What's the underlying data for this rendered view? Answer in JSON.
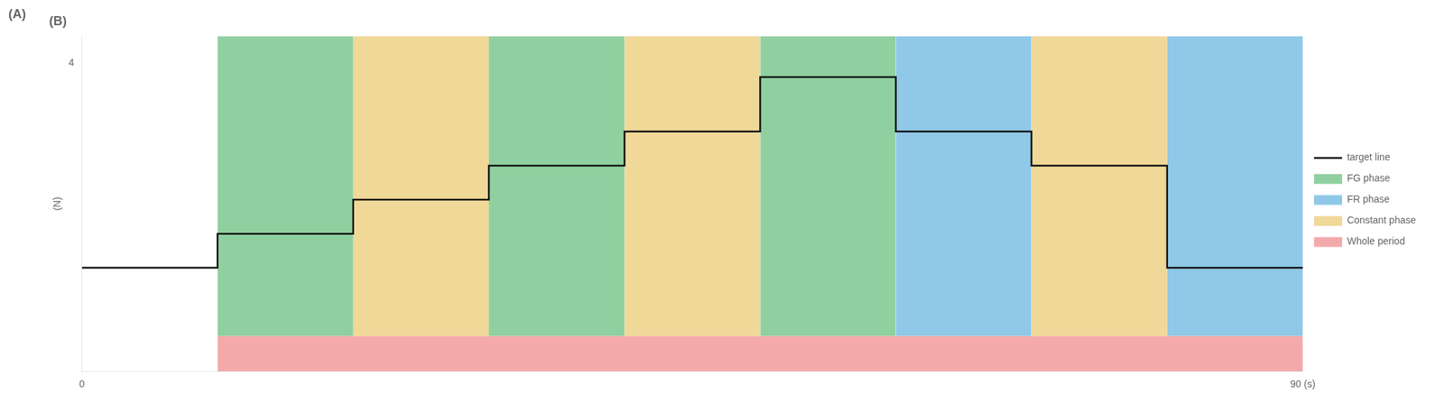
{
  "chart_data": {
    "type": "line",
    "title": "(B)",
    "annotations": [
      {
        "text": "(A)"
      }
    ],
    "ylabel": "(N)",
    "x": [
      0,
      10,
      10,
      20,
      20,
      30,
      30,
      40,
      40,
      50,
      50,
      60,
      60,
      70,
      70,
      80,
      80,
      90
    ],
    "series": [
      {
        "name": "target line",
        "color": "#111111",
        "values": [
          1.0,
          1.0,
          1.5,
          1.5,
          2.0,
          2.0,
          2.5,
          2.5,
          3.0,
          3.0,
          3.8,
          3.8,
          3.0,
          3.0,
          2.5,
          2.5,
          1.0,
          1.0
        ]
      }
    ],
    "phases": [
      {
        "name": "FG phase",
        "color": "#90D0A0",
        "y_range": [
          0,
          4.4
        ]
      },
      {
        "name": "FR phase",
        "color": "#90C8E8",
        "y_range": [
          0,
          4.4
        ]
      },
      {
        "name": "Constant phase",
        "color": "#F0D898",
        "y_range": [
          0,
          4.4
        ]
      },
      {
        "name": "Whole period",
        "color": "#F4AAAA",
        "y_range": [
          -0.52,
          0
        ]
      }
    ],
    "bands": [
      {
        "xmin": 10,
        "xmax": 20,
        "phase": "FG phase"
      },
      {
        "xmin": 20,
        "xmax": 30,
        "phase": "Constant phase"
      },
      {
        "xmin": 30,
        "xmax": 40,
        "phase": "FG phase"
      },
      {
        "xmin": 40,
        "xmax": 50,
        "phase": "Constant phase"
      },
      {
        "xmin": 50,
        "xmax": 60,
        "phase": "FG phase"
      },
      {
        "xmin": 60,
        "xmax": 70,
        "phase": "FR phase"
      },
      {
        "xmin": 70,
        "xmax": 80,
        "phase": "Constant phase"
      },
      {
        "xmin": 80,
        "xmax": 90,
        "phase": "FR phase"
      },
      {
        "xmin": 10,
        "xmax": 90,
        "phase": "Whole period"
      }
    ],
    "xlim": [
      0,
      90
    ],
    "xticks": [
      {
        "value": 0,
        "label": "0"
      },
      {
        "value": 90,
        "label": "90 (s)"
      }
    ],
    "ylim": [
      -0.52,
      4.4
    ],
    "yticks": [
      4
    ],
    "grid": false,
    "legend": "right"
  }
}
